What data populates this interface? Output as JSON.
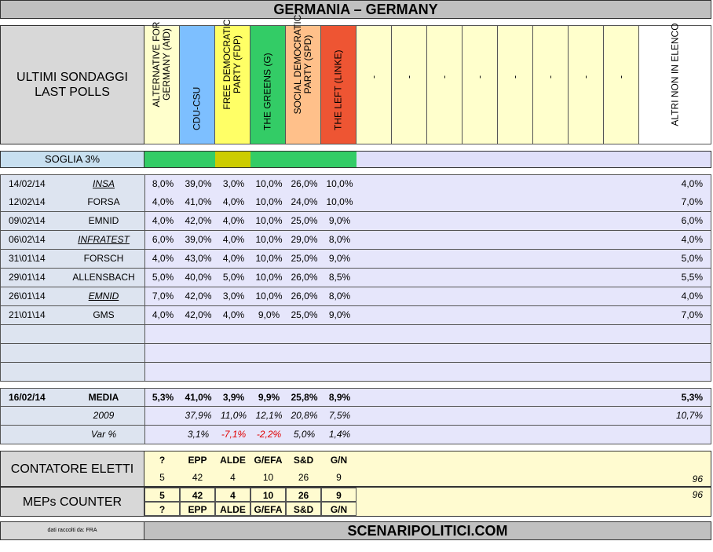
{
  "title": "GERMANIA – GERMANY",
  "header": {
    "label_line1": "ULTIMI SONDAGGI",
    "label_line2": "LAST POLLS",
    "parties": [
      {
        "name": "ALTERNATIVE FOR GERMANY (AfD)",
        "color": "#ffffcc"
      },
      {
        "name": "CDU-CSU",
        "color": "#7dbfff"
      },
      {
        "name": "FREE DEMOCRATIC PARTY (FDP)",
        "color": "#ffff66"
      },
      {
        "name": "THE GREENS (G)",
        "color": "#33cc66"
      },
      {
        "name": "SOCIAL DEMOCRATIC PARTY (SPD)",
        "color": "#ffc08a"
      },
      {
        "name": "THE LEFT (LINKE)",
        "color": "#ee5533"
      },
      {
        "name": "-",
        "color": "#ffffcc"
      },
      {
        "name": "-",
        "color": "#ffffcc"
      },
      {
        "name": "-",
        "color": "#ffffcc"
      },
      {
        "name": "-",
        "color": "#ffffcc"
      },
      {
        "name": "-",
        "color": "#ffffcc"
      },
      {
        "name": "-",
        "color": "#ffffcc"
      },
      {
        "name": "-",
        "color": "#ffffcc"
      },
      {
        "name": "-",
        "color": "#ffffcc"
      },
      {
        "name": "ALTRI NON IN ELENCO",
        "color": "#ffffff"
      }
    ]
  },
  "soglia": {
    "label": "SOGLIA 3%",
    "bar_colors": [
      "#33cc66",
      "#33cc66",
      "#cccc00",
      "#33cc66",
      "#33cc66",
      "#33cc66"
    ]
  },
  "polls": [
    {
      "date": "14/02/14",
      "institute": "INSA",
      "italic": true,
      "values": [
        "8,0%",
        "39,0%",
        "3,0%",
        "10,0%",
        "26,0%",
        "10,0%"
      ],
      "others": "4,0%"
    },
    {
      "date": "12\\02\\14",
      "institute": "FORSA",
      "italic": false,
      "values": [
        "4,0%",
        "41,0%",
        "4,0%",
        "10,0%",
        "24,0%",
        "10,0%"
      ],
      "others": "7,0%"
    },
    {
      "date": "09\\02\\14",
      "institute": "EMNID",
      "italic": false,
      "values": [
        "4,0%",
        "42,0%",
        "4,0%",
        "10,0%",
        "25,0%",
        "9,0%"
      ],
      "others": "6,0%"
    },
    {
      "date": "06\\02\\14",
      "institute": "INFRATEST",
      "italic": true,
      "values": [
        "6,0%",
        "39,0%",
        "4,0%",
        "10,0%",
        "29,0%",
        "8,0%"
      ],
      "others": "4,0%"
    },
    {
      "date": "31\\01\\14",
      "institute": "FORSCH",
      "italic": false,
      "values": [
        "4,0%",
        "43,0%",
        "4,0%",
        "10,0%",
        "25,0%",
        "9,0%"
      ],
      "others": "5,0%"
    },
    {
      "date": "29\\01\\14",
      "institute": "ALLENSBACH",
      "italic": false,
      "values": [
        "5,0%",
        "40,0%",
        "5,0%",
        "10,0%",
        "26,0%",
        "8,5%"
      ],
      "others": "5,5%"
    },
    {
      "date": "26\\01\\14",
      "institute": "EMNID",
      "italic": true,
      "values": [
        "7,0%",
        "42,0%",
        "3,0%",
        "10,0%",
        "26,0%",
        "8,0%"
      ],
      "others": "4,0%"
    },
    {
      "date": "21\\01\\14",
      "institute": "GMS",
      "italic": false,
      "values": [
        "4,0%",
        "42,0%",
        "4,0%",
        "9,0%",
        "25,0%",
        "9,0%"
      ],
      "others": "7,0%"
    }
  ],
  "media": {
    "date": "16/02/14",
    "label": "MEDIA",
    "values": [
      "5,3%",
      "41,0%",
      "3,9%",
      "9,9%",
      "25,8%",
      "8,9%"
    ],
    "others": "5,3%"
  },
  "y2009": {
    "label": "2009",
    "values": [
      "",
      "37,9%",
      "11,0%",
      "12,1%",
      "20,8%",
      "7,5%"
    ],
    "others": "10,7%"
  },
  "var": {
    "label": "Var %",
    "values": [
      "",
      "3,1%",
      "-7,1%",
      "-2,2%",
      "5,0%",
      "1,4%"
    ],
    "negative_color": "#e00000"
  },
  "contatore": {
    "label": "CONTATORE ELETTI",
    "groups": [
      "?",
      "EPP",
      "ALDE",
      "G/EFA",
      "S&D",
      "G/N"
    ],
    "seats": [
      "5",
      "42",
      "4",
      "10",
      "26",
      "9"
    ],
    "total": "96"
  },
  "meps": {
    "label": "MEPs COUNTER",
    "seats": [
      "5",
      "42",
      "4",
      "10",
      "26",
      "9"
    ],
    "groups": [
      "?",
      "EPP",
      "ALDE",
      "G/EFA",
      "S&D",
      "G/N"
    ],
    "total": "96"
  },
  "footer": {
    "source": "dati raccolti da: FRA",
    "site": "SCENARIPOLITICI.COM"
  }
}
